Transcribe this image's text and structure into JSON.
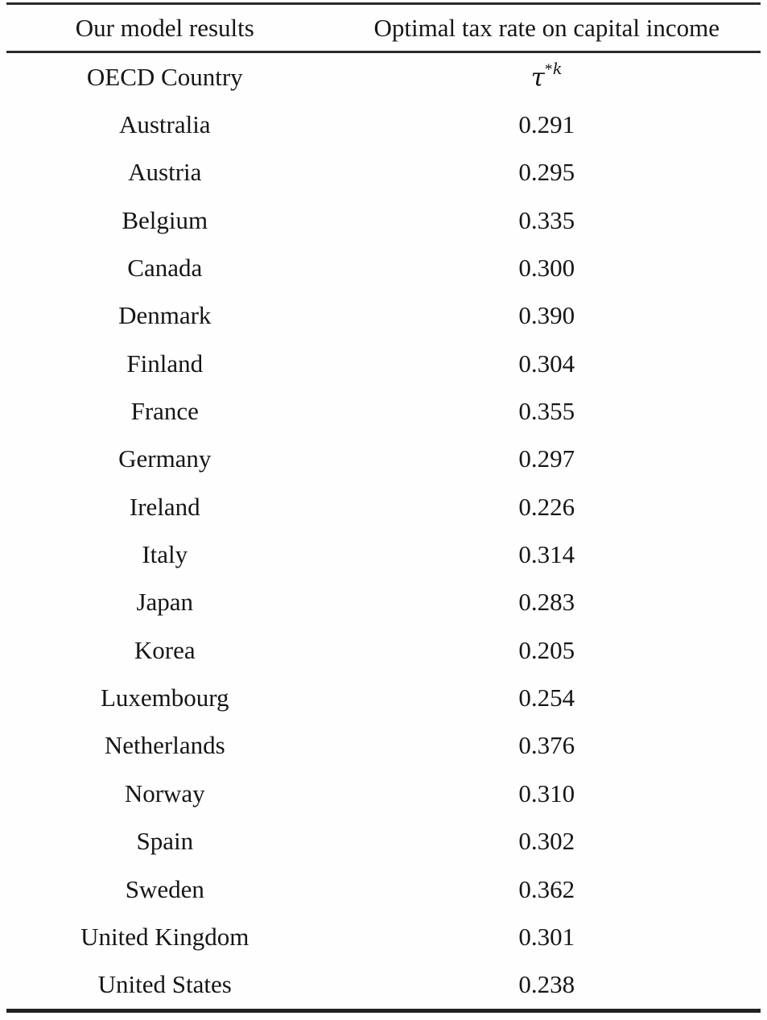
{
  "table": {
    "header": {
      "col1": "Our model results",
      "col2": "Optimal tax rate on capital income"
    },
    "subheader": {
      "col1": "OECD Country",
      "symbol_base": "τ",
      "symbol_sup_star": "*",
      "symbol_sup_k": "k"
    },
    "rows": [
      {
        "country": "Australia",
        "value": "0.291"
      },
      {
        "country": "Austria",
        "value": "0.295"
      },
      {
        "country": "Belgium",
        "value": "0.335"
      },
      {
        "country": "Canada",
        "value": "0.300"
      },
      {
        "country": "Denmark",
        "value": "0.390"
      },
      {
        "country": "Finland",
        "value": "0.304"
      },
      {
        "country": "France",
        "value": "0.355"
      },
      {
        "country": "Germany",
        "value": "0.297"
      },
      {
        "country": "Ireland",
        "value": "0.226"
      },
      {
        "country": "Italy",
        "value": "0.314"
      },
      {
        "country": "Japan",
        "value": "0.283"
      },
      {
        "country": "Korea",
        "value": "0.205"
      },
      {
        "country": "Luxembourg",
        "value": "0.254"
      },
      {
        "country": "Netherlands",
        "value": "0.376"
      },
      {
        "country": "Norway",
        "value": "0.310"
      },
      {
        "country": "Spain",
        "value": "0.302"
      },
      {
        "country": "Sweden",
        "value": "0.362"
      },
      {
        "country": "United Kingdom",
        "value": "0.301"
      },
      {
        "country": "United States",
        "value": "0.238"
      }
    ],
    "colors": {
      "text": "#161616",
      "rule": "#2b2b2b",
      "background": "#fefefe"
    }
  }
}
